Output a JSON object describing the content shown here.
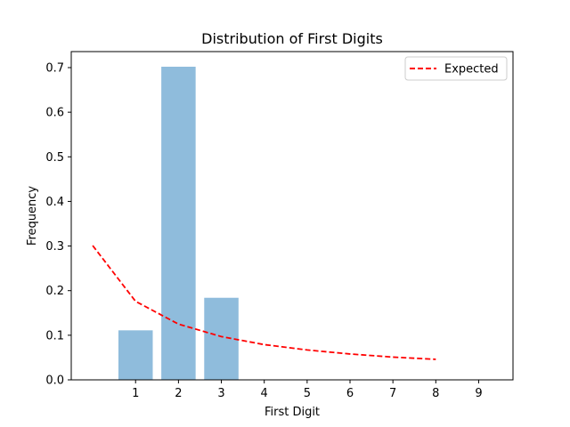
{
  "chart_data": {
    "type": "bar",
    "title": "Distribution of First Digits",
    "xlabel": "First Digit",
    "ylabel": "Frequency",
    "xlim": [
      -0.5,
      9.8
    ],
    "ylim": [
      0,
      0.7
    ],
    "x_ticks": [
      1,
      2,
      3,
      4,
      5,
      6,
      7,
      8,
      9
    ],
    "y_ticks": [
      0.0,
      0.1,
      0.2,
      0.3,
      0.4,
      0.5,
      0.6,
      0.7
    ],
    "bars": {
      "x": [
        1,
        2,
        3
      ],
      "values": [
        0.111,
        0.702,
        0.184
      ],
      "color": "#8fbcdc"
    },
    "series": [
      {
        "name": "Expected",
        "x": [
          0,
          1,
          2,
          3,
          4,
          5,
          6,
          7,
          8
        ],
        "values": [
          0.301,
          0.176,
          0.125,
          0.097,
          0.079,
          0.067,
          0.058,
          0.051,
          0.046
        ],
        "color": "#ff0000",
        "style": "dashed"
      }
    ],
    "legend": {
      "placement": "top-right",
      "entries": [
        "Expected"
      ]
    },
    "grid": false
  }
}
